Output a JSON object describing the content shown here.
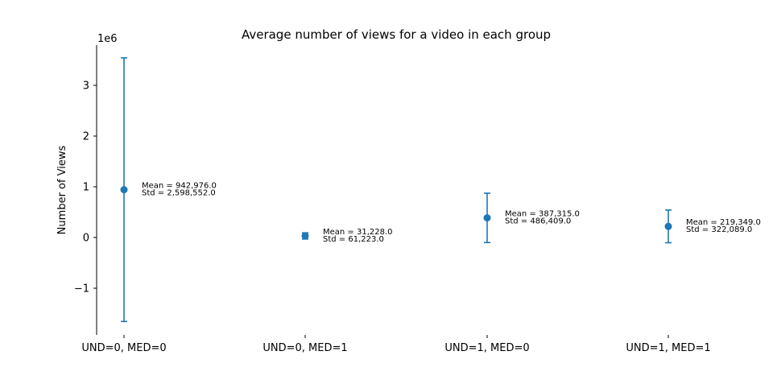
{
  "chart_data": {
    "type": "errorbar",
    "title": "Average number of views for a video in each group",
    "xlabel": "",
    "ylabel": "Number of Views",
    "y_scale_label": "1e6",
    "y_scale": 1000000,
    "ylim": [
      -1.9,
      3.8
    ],
    "yticks": [
      -1,
      0,
      1,
      2,
      3
    ],
    "ytick_labels": [
      "−1",
      "0",
      "1",
      "2",
      "3"
    ],
    "categories": [
      "UND=0, MED=0",
      "UND=0, MED=1",
      "UND=1, MED=0",
      "UND=1, MED=1"
    ],
    "means": [
      942976.0,
      31228.0,
      387315.0,
      219349.0
    ],
    "stds": [
      2598552.0,
      61223.0,
      486409.0,
      322089.0
    ],
    "annotations": [
      {
        "mean": "Mean = 942,976.0",
        "std": "Std = 2,598,552.0"
      },
      {
        "mean": "Mean = 31,228.0",
        "std": "Std = 61,223.0"
      },
      {
        "mean": "Mean = 387,315.0",
        "std": "Std = 486,409.0"
      },
      {
        "mean": "Mean = 219,349.0",
        "std": "Std = 322,089.0"
      }
    ],
    "grid": false,
    "color": "#1f77b4"
  }
}
